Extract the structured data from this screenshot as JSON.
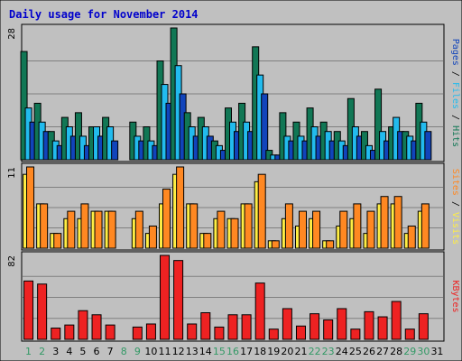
{
  "chart_data": {
    "type": "bar",
    "title": "Daily usage for November 2014",
    "categories": [
      "1",
      "2",
      "3",
      "4",
      "5",
      "6",
      "7",
      "8",
      "9",
      "10",
      "11",
      "12",
      "13",
      "14",
      "15",
      "16",
      "17",
      "18",
      "19",
      "20",
      "21",
      "22",
      "23",
      "24",
      "25",
      "26",
      "27",
      "28",
      "29",
      "30",
      "31"
    ],
    "weekend_days": [
      "1",
      "2",
      "8",
      "9",
      "15",
      "16",
      "22",
      "23",
      "29",
      "30"
    ],
    "panels": [
      {
        "name": "hits-files-pages",
        "ymax": 28,
        "max_label": "28",
        "side_labels": [
          "Pages",
          "Files",
          "Hits"
        ],
        "series": [
          {
            "name": "Hits",
            "color": "#117755",
            "values": [
              23,
              12,
              6,
              9,
              10,
              7,
              9,
              0,
              8,
              7,
              21,
              28,
              10,
              9,
              4,
              11,
              12,
              24,
              2,
              10,
              8,
              11,
              8,
              6,
              13,
              6,
              15,
              7,
              6,
              12,
              0
            ]
          },
          {
            "name": "Files",
            "color": "#22bbee",
            "values": [
              11,
              8,
              4,
              7,
              5,
              7,
              7,
              0,
              5,
              4,
              16,
              20,
              7,
              7,
              3,
              8,
              8,
              18,
              1,
              5,
              5,
              7,
              6,
              4,
              7,
              3,
              6,
              9,
              5,
              8,
              0
            ]
          },
          {
            "name": "Pages",
            "color": "#1144bb",
            "values": [
              8,
              6,
              3,
              5,
              3,
              5,
              4,
              0,
              4,
              3,
              12,
              14,
              5,
              5,
              2,
              6,
              6,
              14,
              1,
              4,
              4,
              5,
              4,
              3,
              5,
              2,
              4,
              6,
              4,
              6,
              0
            ]
          }
        ]
      },
      {
        "name": "sites-visits",
        "ymax": 11,
        "max_label": "11",
        "side_labels": [
          "Sites",
          "Visits"
        ],
        "series": [
          {
            "name": "Visits",
            "color": "#ffee44",
            "values": [
              10,
              6,
              2,
              4,
              4,
              5,
              5,
              0,
              4,
              2,
              6,
              10,
              6,
              2,
              4,
              4,
              6,
              9,
              1,
              4,
              3,
              4,
              1,
              3,
              4,
              2,
              6,
              6,
              2,
              5,
              0
            ]
          },
          {
            "name": "Sites",
            "color": "#ff8822",
            "values": [
              11,
              6,
              2,
              5,
              6,
              5,
              5,
              0,
              5,
              3,
              8,
              11,
              6,
              2,
              5,
              4,
              6,
              10,
              1,
              6,
              5,
              5,
              1,
              5,
              6,
              5,
              7,
              7,
              3,
              6,
              0
            ]
          }
        ]
      },
      {
        "name": "kbytes",
        "ymax": 82,
        "max_label": "82",
        "side_labels": [
          "KBytes"
        ],
        "series": [
          {
            "name": "KBytes",
            "color": "#ee2222",
            "values": [
              57,
              54,
              11,
              14,
              28,
              24,
              14,
              0,
              12,
              15,
              82,
              77,
              15,
              26,
              12,
              24,
              24,
              55,
              10,
              30,
              13,
              25,
              19,
              30,
              10,
              27,
              22,
              37,
              10,
              25,
              0
            ]
          }
        ]
      }
    ],
    "colors": {
      "title": "#0000cc",
      "weekday_label": "#000000",
      "weekend_label": "#339966",
      "plot_bg": "#c0c0c0",
      "frame_bg": "#c0c0c0"
    }
  }
}
